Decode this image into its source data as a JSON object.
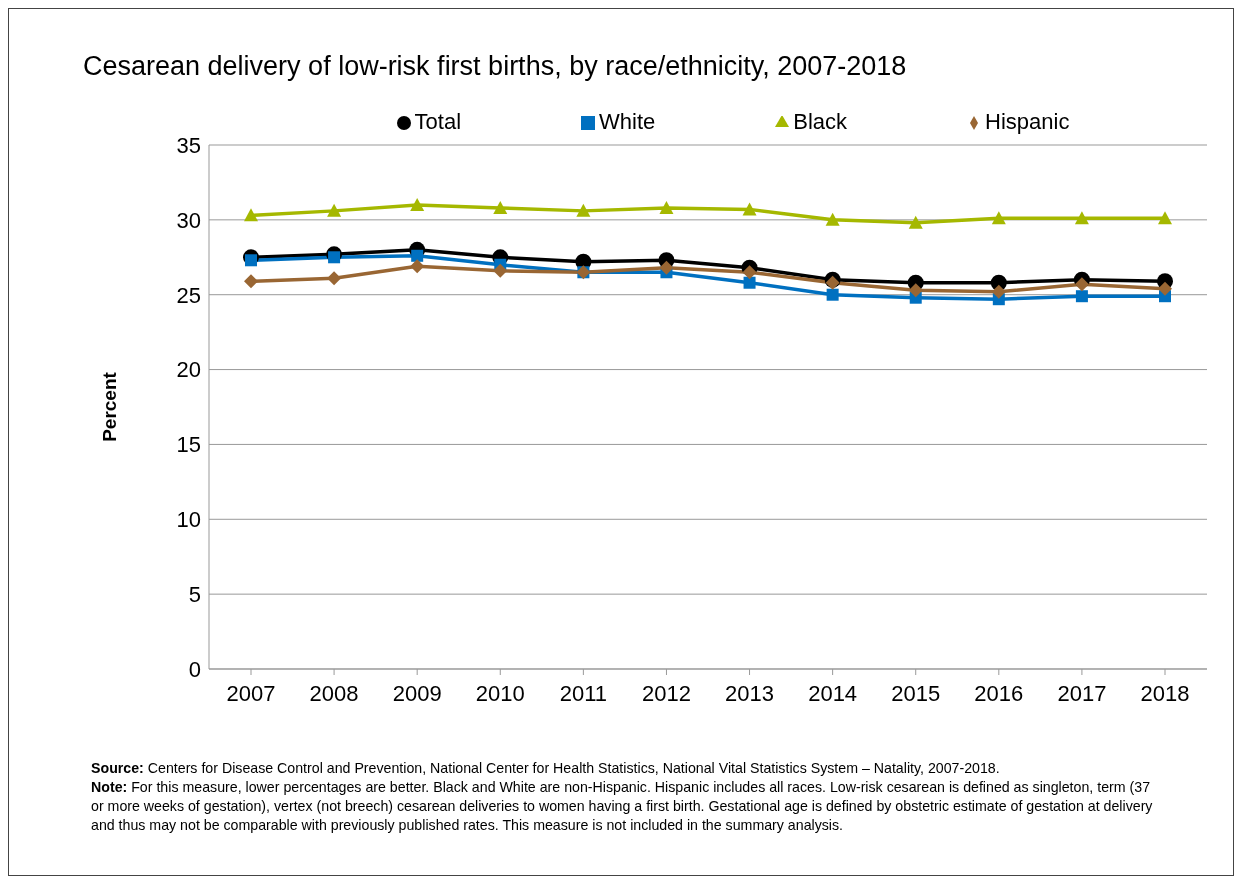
{
  "chart_data": {
    "type": "line",
    "title": "Cesarean delivery of low-risk first births, by race/ethnicity, 2007-2018",
    "ylabel": "Percent",
    "categories": [
      "2007",
      "2008",
      "2009",
      "2010",
      "2011",
      "2012",
      "2013",
      "2014",
      "2015",
      "2016",
      "2017",
      "2018"
    ],
    "series": [
      {
        "name": "Total",
        "color": "#000000",
        "marker": "circle",
        "values": [
          27.5,
          27.7,
          28.0,
          27.5,
          27.2,
          27.3,
          26.8,
          26.0,
          25.8,
          25.8,
          26.0,
          25.9
        ]
      },
      {
        "name": "White",
        "color": "#0070c0",
        "marker": "square",
        "values": [
          27.3,
          27.5,
          27.6,
          27.0,
          26.5,
          26.5,
          25.8,
          25.0,
          24.8,
          24.7,
          24.9,
          24.9
        ]
      },
      {
        "name": "Black",
        "color": "#a5b800",
        "marker": "triangle",
        "values": [
          30.3,
          30.6,
          31.0,
          30.8,
          30.6,
          30.8,
          30.7,
          30.0,
          29.8,
          30.1,
          30.1,
          30.1
        ]
      },
      {
        "name": "Hispanic",
        "color": "#996633",
        "marker": "diamond",
        "values": [
          25.9,
          26.1,
          26.9,
          26.6,
          26.5,
          26.8,
          26.5,
          25.8,
          25.3,
          25.2,
          25.7,
          25.4
        ]
      }
    ],
    "ylim": [
      0,
      35
    ],
    "yticks": [
      0,
      5,
      10,
      15,
      20,
      25,
      30,
      35
    ],
    "grid": "y",
    "legend": "top",
    "annotations": [
      "Source: Centers for Disease Control and Prevention, National Center for Health Statistics, National Vital Statistics System – Natality, 2007-2018.",
      "Note: For this measure, lower percentages are better. Black and White are non-Hispanic. Hispanic includes all races. Low-risk cesarean is defined as singleton, term (37 or more weeks of gestation), vertex (not breech) cesarean deliveries to women having a first birth. Gestational age is defined by obstetric estimate of gestation at delivery and thus may not be comparable with previously published rates. This measure is not included in the summary analysis."
    ]
  }
}
